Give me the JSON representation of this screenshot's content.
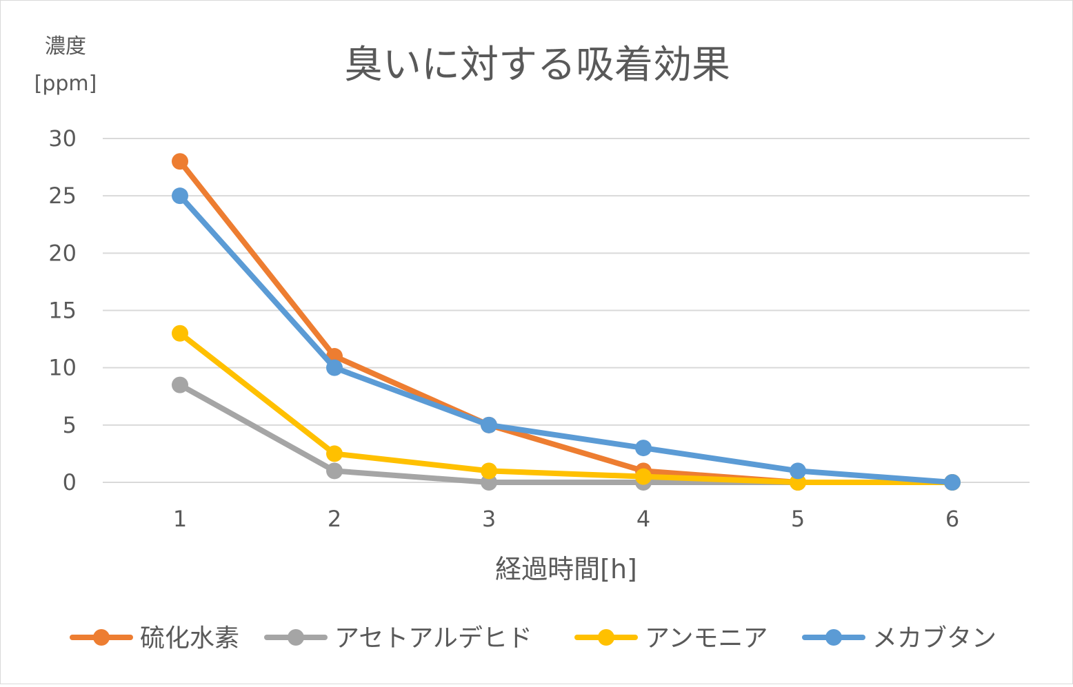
{
  "chart_data": {
    "type": "line",
    "title": "臭いに対する吸着効果",
    "xlabel": "経過時間[h]",
    "ylabel": [
      "濃度",
      "[ppm]"
    ],
    "categories": [
      "1",
      "2",
      "3",
      "4",
      "5",
      "6"
    ],
    "ylim": [
      0,
      30
    ],
    "yticks": [
      0,
      5,
      10,
      15,
      20,
      25,
      30
    ],
    "grid": true,
    "legend_position": "bottom",
    "series": [
      {
        "name": "硫化水素",
        "color": "#ED7D31",
        "values": [
          28,
          11,
          5,
          1,
          0,
          0
        ]
      },
      {
        "name": "アセトアルデヒド",
        "color": "#A5A5A5",
        "values": [
          8.5,
          1,
          0,
          0,
          0,
          0
        ]
      },
      {
        "name": "アンモニア",
        "color": "#FFC000",
        "values": [
          13,
          2.5,
          1,
          0.5,
          0,
          0
        ]
      },
      {
        "name": "メカブタン",
        "color": "#5B9BD5",
        "values": [
          25,
          10,
          5,
          3,
          1,
          0
        ]
      }
    ],
    "colors": {
      "gridline": "#d9d9d9",
      "tick_text": "#595959",
      "title_text": "#595959"
    }
  }
}
